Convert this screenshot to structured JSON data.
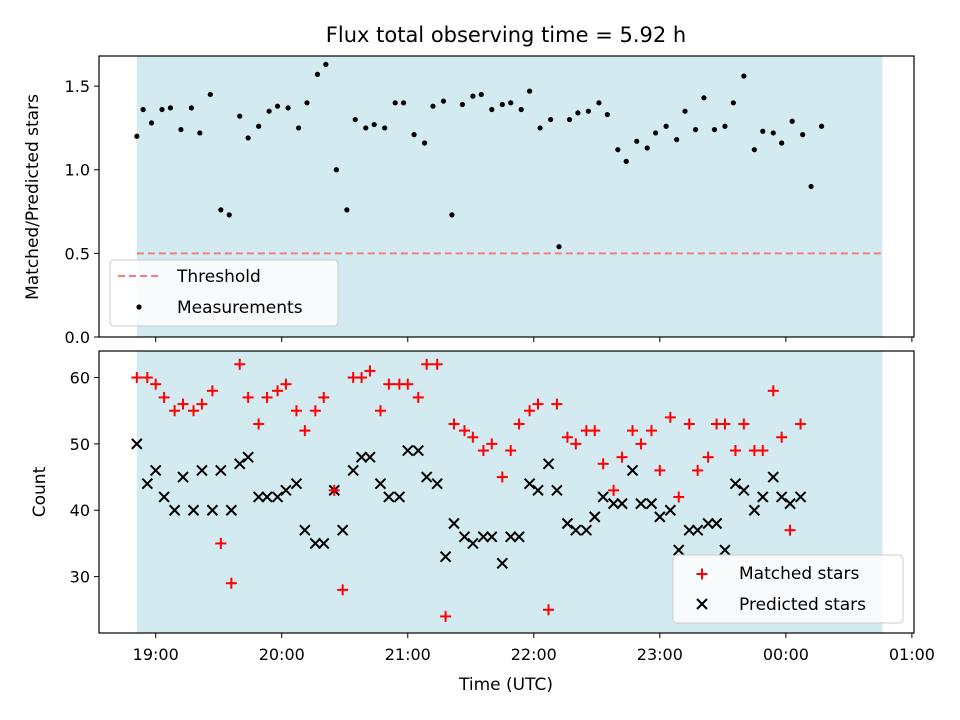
{
  "figure": {
    "title": "Flux total observing time = 5.92 h"
  },
  "colors": {
    "observing_band": "#d4eaf1",
    "threshold": "#f08080",
    "measurements": "#000000",
    "matched": "#ff0000",
    "predicted": "#000000"
  },
  "chart_data": [
    {
      "type": "scatter",
      "panel": "top",
      "title": "Flux total observing time = 5.92 h",
      "xlabel": "",
      "ylabel": "Matched/Predicted stars",
      "xlim": [
        "18:33",
        "01:01"
      ],
      "ylim": [
        0,
        1.68
      ],
      "yticks": [
        0.0,
        0.5,
        1.0,
        1.5
      ],
      "ytick_labels": [
        "0.0",
        "0.5",
        "1.0",
        "1.5"
      ],
      "xticks": [
        "19:00",
        "20:00",
        "21:00",
        "22:00",
        "23:00",
        "00:00",
        "01:00"
      ],
      "shaded_span": [
        "18:51",
        "00:46"
      ],
      "legend_position": "lower left",
      "series": [
        {
          "name": "Threshold",
          "kind": "hline",
          "style": "dashed",
          "color": "#f08080",
          "y": 0.5
        },
        {
          "name": "Measurements",
          "kind": "points",
          "color": "#000000",
          "points": [
            [
              "18:51",
              1.2
            ],
            [
              "18:54",
              1.36
            ],
            [
              "18:58",
              1.28
            ],
            [
              "19:03",
              1.36
            ],
            [
              "19:07",
              1.37
            ],
            [
              "19:12",
              1.24
            ],
            [
              "19:17",
              1.37
            ],
            [
              "19:21",
              1.22
            ],
            [
              "19:26",
              1.45
            ],
            [
              "19:31",
              0.76
            ],
            [
              "19:35",
              0.73
            ],
            [
              "19:40",
              1.32
            ],
            [
              "19:44",
              1.19
            ],
            [
              "19:49",
              1.26
            ],
            [
              "19:54",
              1.35
            ],
            [
              "19:58",
              1.38
            ],
            [
              "20:03",
              1.37
            ],
            [
              "20:08",
              1.25
            ],
            [
              "20:12",
              1.4
            ],
            [
              "20:17",
              1.57
            ],
            [
              "20:21",
              1.63
            ],
            [
              "20:26",
              1.0
            ],
            [
              "20:31",
              0.76
            ],
            [
              "20:35",
              1.3
            ],
            [
              "20:40",
              1.25
            ],
            [
              "20:44",
              1.27
            ],
            [
              "20:49",
              1.25
            ],
            [
              "20:54",
              1.4
            ],
            [
              "20:58",
              1.4
            ],
            [
              "21:03",
              1.21
            ],
            [
              "21:08",
              1.16
            ],
            [
              "21:12",
              1.38
            ],
            [
              "21:17",
              1.41
            ],
            [
              "21:21",
              0.73
            ],
            [
              "21:26",
              1.39
            ],
            [
              "21:31",
              1.44
            ],
            [
              "21:35",
              1.45
            ],
            [
              "21:40",
              1.36
            ],
            [
              "21:45",
              1.39
            ],
            [
              "21:49",
              1.4
            ],
            [
              "21:54",
              1.36
            ],
            [
              "21:58",
              1.47
            ],
            [
              "22:03",
              1.25
            ],
            [
              "22:08",
              1.3
            ],
            [
              "22:12",
              0.54
            ],
            [
              "22:17",
              1.3
            ],
            [
              "22:21",
              1.34
            ],
            [
              "22:26",
              1.35
            ],
            [
              "22:31",
              1.4
            ],
            [
              "22:35",
              1.33
            ],
            [
              "22:40",
              1.12
            ],
            [
              "22:44",
              1.05
            ],
            [
              "22:49",
              1.17
            ],
            [
              "22:54",
              1.13
            ],
            [
              "22:58",
              1.22
            ],
            [
              "23:03",
              1.26
            ],
            [
              "23:08",
              1.18
            ],
            [
              "23:12",
              1.35
            ],
            [
              "23:17",
              1.24
            ],
            [
              "23:21",
              1.43
            ],
            [
              "23:26",
              1.24
            ],
            [
              "23:31",
              1.26
            ],
            [
              "23:35",
              1.4
            ],
            [
              "23:40",
              1.56
            ],
            [
              "23:45",
              1.12
            ],
            [
              "23:49",
              1.23
            ],
            [
              "23:54",
              1.22
            ],
            [
              "23:58",
              1.16
            ],
            [
              "00:03",
              1.29
            ],
            [
              "00:08",
              1.21
            ],
            [
              "00:12",
              0.9
            ],
            [
              "00:17",
              1.26
            ]
          ]
        }
      ]
    },
    {
      "type": "scatter",
      "panel": "bottom",
      "xlabel": "Time (UTC)",
      "ylabel": "Count",
      "xlim": [
        "18:33",
        "01:01"
      ],
      "ylim": [
        21.5,
        64
      ],
      "yticks": [
        30,
        40,
        50,
        60
      ],
      "ytick_labels": [
        "30",
        "40",
        "50",
        "60"
      ],
      "xticks": [
        "19:00",
        "20:00",
        "21:00",
        "22:00",
        "23:00",
        "00:00",
        "01:00"
      ],
      "xtick_labels": [
        "19:00",
        "20:00",
        "21:00",
        "22:00",
        "23:00",
        "00:00",
        "01:00"
      ],
      "shaded_span": [
        "18:51",
        "00:46"
      ],
      "legend_position": "lower right",
      "series": [
        {
          "name": "Matched stars",
          "marker": "plus",
          "color": "#ff0000",
          "points": [
            [
              "18:51",
              60
            ],
            [
              "18:56",
              60
            ],
            [
              "19:00",
              59
            ],
            [
              "19:04",
              57
            ],
            [
              "19:09",
              55
            ],
            [
              "19:13",
              56
            ],
            [
              "19:18",
              55
            ],
            [
              "19:22",
              56
            ],
            [
              "19:27",
              58
            ],
            [
              "19:31",
              35
            ],
            [
              "19:36",
              29
            ],
            [
              "19:40",
              62
            ],
            [
              "19:44",
              57
            ],
            [
              "19:49",
              53
            ],
            [
              "19:53",
              57
            ],
            [
              "19:58",
              58
            ],
            [
              "20:02",
              59
            ],
            [
              "20:07",
              55
            ],
            [
              "20:11",
              52
            ],
            [
              "20:16",
              55
            ],
            [
              "20:20",
              57
            ],
            [
              "20:25",
              43
            ],
            [
              "20:29",
              28
            ],
            [
              "20:34",
              60
            ],
            [
              "20:38",
              60
            ],
            [
              "20:42",
              61
            ],
            [
              "20:47",
              55
            ],
            [
              "20:51",
              59
            ],
            [
              "20:56",
              59
            ],
            [
              "21:00",
              59
            ],
            [
              "21:05",
              57
            ],
            [
              "21:09",
              62
            ],
            [
              "21:14",
              62
            ],
            [
              "21:18",
              24
            ],
            [
              "21:22",
              53
            ],
            [
              "21:27",
              52
            ],
            [
              "21:31",
              51
            ],
            [
              "21:36",
              49
            ],
            [
              "21:40",
              50
            ],
            [
              "21:45",
              45
            ],
            [
              "21:49",
              49
            ],
            [
              "21:53",
              53
            ],
            [
              "21:58",
              55
            ],
            [
              "22:02",
              56
            ],
            [
              "22:07",
              25
            ],
            [
              "22:11",
              56
            ],
            [
              "22:16",
              51
            ],
            [
              "22:20",
              50
            ],
            [
              "22:25",
              52
            ],
            [
              "22:29",
              52
            ],
            [
              "22:33",
              47
            ],
            [
              "22:38",
              43
            ],
            [
              "22:42",
              48
            ],
            [
              "22:47",
              52
            ],
            [
              "22:51",
              50
            ],
            [
              "22:56",
              52
            ],
            [
              "23:00",
              46
            ],
            [
              "23:05",
              54
            ],
            [
              "23:09",
              42
            ],
            [
              "23:14",
              53
            ],
            [
              "23:18",
              46
            ],
            [
              "23:23",
              48
            ],
            [
              "23:27",
              53
            ],
            [
              "23:31",
              53
            ],
            [
              "23:36",
              49
            ],
            [
              "23:40",
              53
            ],
            [
              "23:45",
              49
            ],
            [
              "23:49",
              49
            ],
            [
              "23:54",
              58
            ],
            [
              "23:58",
              51
            ],
            [
              "00:02",
              37
            ],
            [
              "00:07",
              53
            ]
          ]
        },
        {
          "name": "Predicted stars",
          "marker": "x",
          "color": "#000000",
          "points": [
            [
              "18:51",
              50
            ],
            [
              "18:56",
              44
            ],
            [
              "19:00",
              46
            ],
            [
              "19:04",
              42
            ],
            [
              "19:09",
              40
            ],
            [
              "19:13",
              45
            ],
            [
              "19:18",
              40
            ],
            [
              "19:22",
              46
            ],
            [
              "19:27",
              40
            ],
            [
              "19:31",
              46
            ],
            [
              "19:36",
              40
            ],
            [
              "19:40",
              47
            ],
            [
              "19:44",
              48
            ],
            [
              "19:49",
              42
            ],
            [
              "19:53",
              42
            ],
            [
              "19:58",
              42
            ],
            [
              "20:02",
              43
            ],
            [
              "20:07",
              44
            ],
            [
              "20:11",
              37
            ],
            [
              "20:16",
              35
            ],
            [
              "20:20",
              35
            ],
            [
              "20:25",
              43
            ],
            [
              "20:29",
              37
            ],
            [
              "20:34",
              46
            ],
            [
              "20:38",
              48
            ],
            [
              "20:42",
              48
            ],
            [
              "20:47",
              44
            ],
            [
              "20:51",
              42
            ],
            [
              "20:56",
              42
            ],
            [
              "21:00",
              49
            ],
            [
              "21:05",
              49
            ],
            [
              "21:09",
              45
            ],
            [
              "21:14",
              44
            ],
            [
              "21:18",
              33
            ],
            [
              "21:22",
              38
            ],
            [
              "21:27",
              36
            ],
            [
              "21:31",
              35
            ],
            [
              "21:36",
              36
            ],
            [
              "21:40",
              36
            ],
            [
              "21:45",
              32
            ],
            [
              "21:49",
              36
            ],
            [
              "21:53",
              36
            ],
            [
              "21:58",
              44
            ],
            [
              "22:02",
              43
            ],
            [
              "22:07",
              47
            ],
            [
              "22:11",
              43
            ],
            [
              "22:16",
              38
            ],
            [
              "22:20",
              37
            ],
            [
              "22:25",
              37
            ],
            [
              "22:29",
              39
            ],
            [
              "22:33",
              42
            ],
            [
              "22:38",
              41
            ],
            [
              "22:42",
              41
            ],
            [
              "22:47",
              46
            ],
            [
              "22:51",
              41
            ],
            [
              "22:56",
              41
            ],
            [
              "23:00",
              39
            ],
            [
              "23:05",
              40
            ],
            [
              "23:09",
              34
            ],
            [
              "23:14",
              37
            ],
            [
              "23:18",
              37
            ],
            [
              "23:23",
              38
            ],
            [
              "23:27",
              38
            ],
            [
              "23:31",
              34
            ],
            [
              "23:36",
              44
            ],
            [
              "23:40",
              43
            ],
            [
              "23:45",
              40
            ],
            [
              "23:49",
              42
            ],
            [
              "23:54",
              45
            ],
            [
              "23:58",
              42
            ],
            [
              "00:02",
              41
            ],
            [
              "00:07",
              42
            ]
          ]
        }
      ]
    }
  ]
}
